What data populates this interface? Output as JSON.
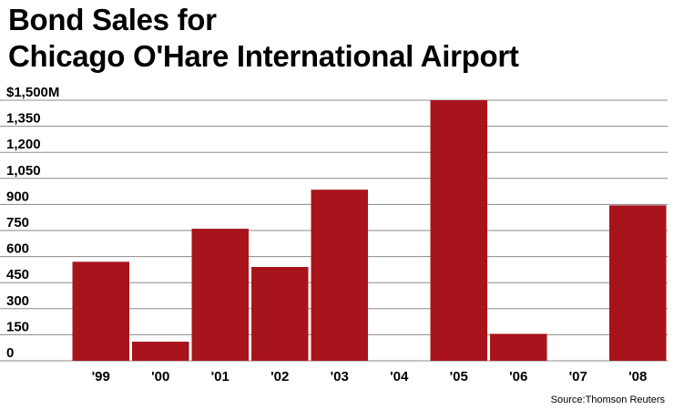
{
  "chart_data": {
    "type": "bar",
    "title": [
      "Bond Sales for",
      "Chicago O'Hare International Airport"
    ],
    "xlabel": "",
    "ylabel": "",
    "categories": [
      "'99",
      "'00",
      "'01",
      "'02",
      "'03",
      "'04",
      "'05",
      "'06",
      "'07",
      "'08"
    ],
    "values": [
      570,
      110,
      760,
      540,
      985,
      0,
      1500,
      155,
      0,
      895
    ],
    "ylim": [
      0,
      1500
    ],
    "yticks": [
      0,
      150,
      300,
      450,
      600,
      750,
      900,
      1050,
      1200,
      1350,
      1500
    ],
    "ytick_labels": [
      "0",
      "150",
      "300",
      "450",
      "600",
      "750",
      "900",
      "1,050",
      "1,200",
      "1,350",
      "$1,500M"
    ],
    "grid": true,
    "bar_color": "#a8141c",
    "source": "Source:Thomson Reuters"
  }
}
